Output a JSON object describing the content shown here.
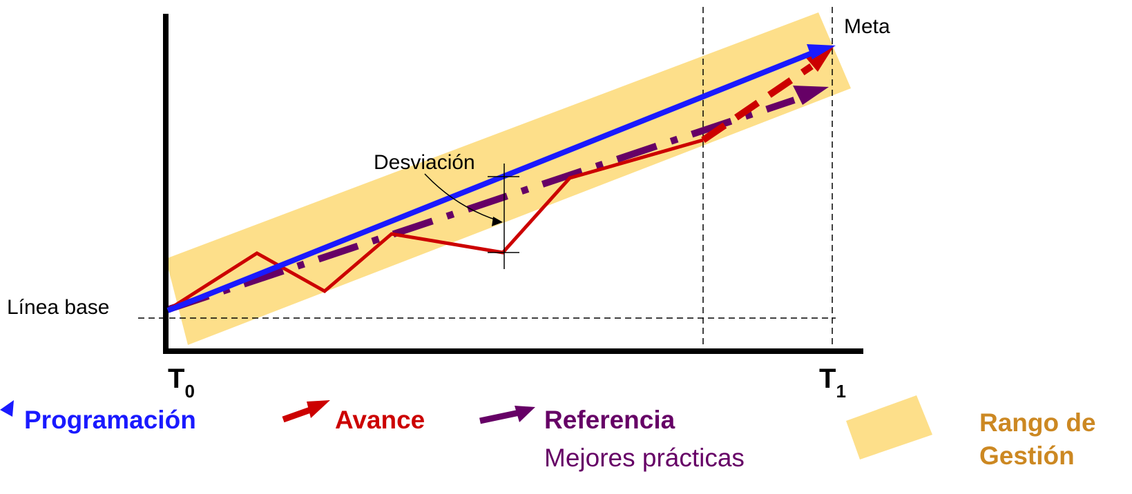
{
  "labels": {
    "meta": "Meta",
    "desviacion": "Desviación",
    "linea_base": "Línea base",
    "t0_main": "T",
    "t0_sub": "0",
    "t1_main": "T",
    "t1_sub": "1"
  },
  "legend": {
    "programacion": "Programación",
    "avance": "Avance",
    "referencia": "Referencia",
    "referencia_sub": "Mejores prácticas",
    "rango_line1": "Rango de",
    "rango_line2": "Gestión"
  },
  "colors": {
    "programacion": "#1a1aff",
    "avance": "#cc0000",
    "referencia": "#660066",
    "rango_band": "#fddf8a",
    "rango_text": "#cc8822",
    "axis": "#000000"
  }
}
